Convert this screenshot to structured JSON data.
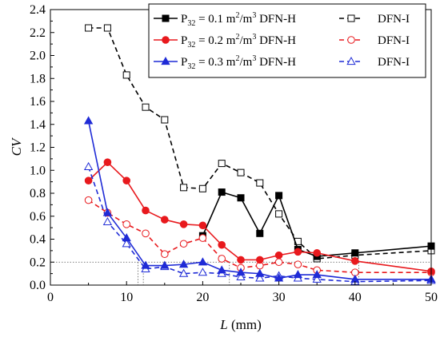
{
  "chart_data": {
    "type": "line",
    "xlabel": {
      "italic": "L",
      "rest": " (mm)"
    },
    "ylabel": "CV",
    "xlim": [
      0,
      50
    ],
    "ylim": [
      0,
      2.4
    ],
    "xticks": [
      0,
      10,
      20,
      30,
      40,
      50
    ],
    "yticks": [
      0.0,
      0.2,
      0.4,
      0.6,
      0.8,
      1.0,
      1.2,
      1.4,
      1.6,
      1.8,
      2.0,
      2.2,
      2.4
    ],
    "legend_position": "top-right",
    "reference_line_y": 0.2,
    "reference_drops_x": [
      11.5,
      12.2,
      23.5,
      40.5
    ],
    "groups": [
      {
        "label": {
          "p": "P",
          "sub": "32",
          "mid": " = 0.1 m",
          "sup1": "2",
          "mid2": "/m",
          "sup2": "3",
          "tail": " DFN-H"
        },
        "second_label": "DFN-I",
        "color": "#000000",
        "marker": "square",
        "h": {
          "x": [
            20,
            22.5,
            25,
            27.5,
            30,
            32.5,
            35,
            40,
            50
          ],
          "y": [
            0.43,
            0.81,
            0.76,
            0.45,
            0.78,
            0.31,
            0.25,
            0.28,
            0.34
          ]
        },
        "i": {
          "x": [
            5,
            7.5,
            10,
            12.5,
            15,
            17.5,
            20,
            22.5,
            25,
            27.5,
            30,
            32.5,
            35,
            40,
            50
          ],
          "y": [
            2.24,
            2.24,
            1.83,
            1.55,
            1.44,
            0.85,
            0.84,
            1.06,
            0.98,
            0.89,
            0.62,
            0.38,
            0.23,
            0.26,
            0.3
          ]
        }
      },
      {
        "label": {
          "p": "P",
          "sub": "32",
          "mid": " = 0.2 m",
          "sup1": "2",
          "mid2": "/m",
          "sup2": "3",
          "tail": " DFN-H"
        },
        "second_label": "DFN-I",
        "color": "#e8191d",
        "marker": "circle",
        "h": {
          "x": [
            5,
            7.5,
            10,
            12.5,
            15,
            17.5,
            20,
            22.5,
            25,
            27.5,
            30,
            32.5,
            35,
            40,
            50
          ],
          "y": [
            0.91,
            1.07,
            0.91,
            0.65,
            0.57,
            0.53,
            0.52,
            0.35,
            0.22,
            0.22,
            0.26,
            0.29,
            0.28,
            0.21,
            0.12
          ]
        },
        "i": {
          "x": [
            5,
            7.5,
            10,
            12.5,
            15,
            17.5,
            20,
            22.5,
            25,
            27.5,
            30,
            32.5,
            35,
            40,
            50
          ],
          "y": [
            0.74,
            0.63,
            0.53,
            0.45,
            0.27,
            0.36,
            0.41,
            0.23,
            0.15,
            0.17,
            0.2,
            0.18,
            0.13,
            0.11,
            0.11
          ]
        }
      },
      {
        "label": {
          "p": "P",
          "sub": "32",
          "mid": " = 0.3 m",
          "sup1": "2",
          "mid2": "/m",
          "sup2": "3",
          "tail": " DFN-H"
        },
        "second_label": "DFN-I",
        "color": "#1f2bd6",
        "marker": "triangle",
        "h": {
          "x": [
            5,
            7.5,
            10,
            12.5,
            15,
            17.5,
            20,
            22.5,
            25,
            27.5,
            30,
            32.5,
            35,
            40,
            50
          ],
          "y": [
            1.43,
            0.63,
            0.41,
            0.17,
            0.17,
            0.18,
            0.2,
            0.13,
            0.11,
            0.1,
            0.06,
            0.09,
            0.09,
            0.05,
            0.05
          ]
        },
        "i": {
          "x": [
            5,
            7.5,
            10,
            12.5,
            15,
            17.5,
            20,
            22.5,
            25,
            27.5,
            30,
            32.5,
            35,
            40,
            50
          ],
          "y": [
            1.03,
            0.55,
            0.36,
            0.14,
            0.16,
            0.1,
            0.11,
            0.1,
            0.07,
            0.06,
            0.08,
            0.06,
            0.05,
            0.03,
            0.04
          ]
        }
      }
    ]
  }
}
